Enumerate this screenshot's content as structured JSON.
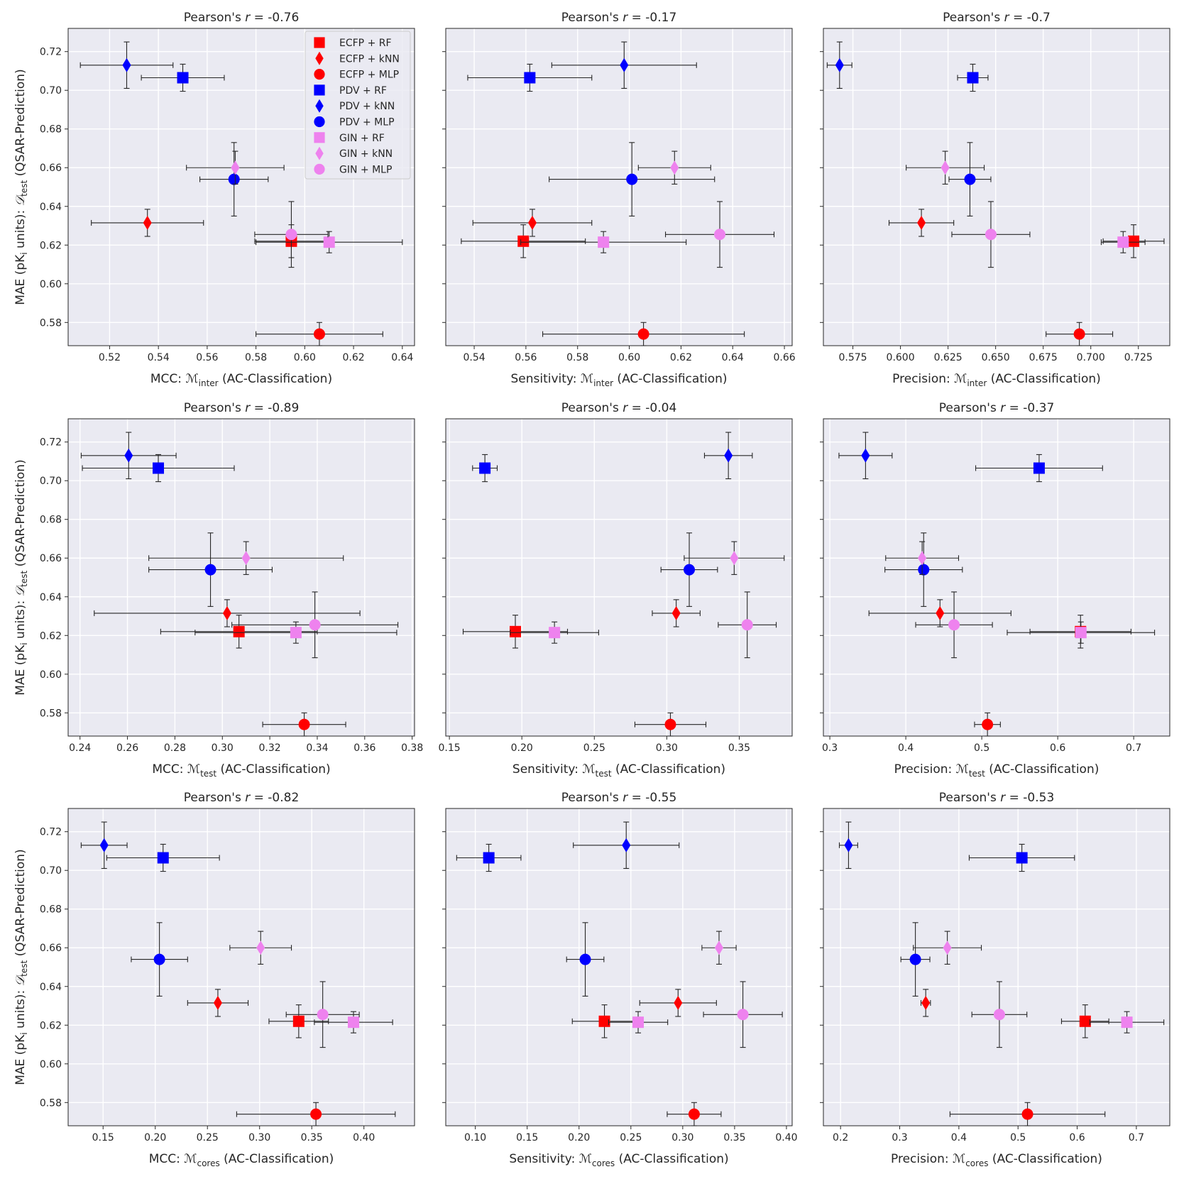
{
  "legend": {
    "placement": "top-right of first panel",
    "entries": [
      {
        "label": "ECFP + RF",
        "color": "#ff0000",
        "marker": "square"
      },
      {
        "label": "ECFP + kNN",
        "color": "#ff0000",
        "marker": "diamond"
      },
      {
        "label": "ECFP + MLP",
        "color": "#ff0000",
        "marker": "circle"
      },
      {
        "label": "PDV + RF",
        "color": "#0000ff",
        "marker": "square"
      },
      {
        "label": "PDV + kNN",
        "color": "#0000ff",
        "marker": "diamond"
      },
      {
        "label": "PDV + MLP",
        "color": "#0000ff",
        "marker": "circle"
      },
      {
        "label": "GIN + RF",
        "color": "#ee82ee",
        "marker": "square"
      },
      {
        "label": "GIN + kNN",
        "color": "#ee82ee",
        "marker": "diamond"
      },
      {
        "label": "GIN + MLP",
        "color": "#ee82ee",
        "marker": "circle"
      }
    ]
  },
  "y_shared": {
    "ylabel_prefix": "MAE (pK",
    "ylabel_sub": "i",
    "ylabel_mid": " units): ",
    "ylabel_math": "𝒟",
    "ylabel_math_sub": "test",
    "ylabel_suffix": " (QSAR-Prediction)",
    "ylim": [
      0.568,
      0.732
    ],
    "yticks": [
      "0.58",
      "0.60",
      "0.62",
      "0.64",
      "0.66",
      "0.68",
      "0.70",
      "0.72"
    ],
    "y_values": [
      0.622,
      0.6315,
      0.574,
      0.7065,
      0.713,
      0.654,
      0.6215,
      0.66,
      0.6255
    ],
    "y_err": [
      0.0085,
      0.007,
      0.006,
      0.007,
      0.012,
      0.019,
      0.0055,
      0.0085,
      0.017
    ]
  },
  "chart_data": [
    {
      "type": "scatter",
      "title_prefix": "Pearson's ",
      "title_r": "r",
      "title_value": " = -0.76",
      "xlabel_prefix": "MCC: ",
      "xlabel_math": "ℳ",
      "xlabel_sub": "inter",
      "xlabel_suffix": " (AC-Classification)",
      "xlim": [
        0.503,
        0.645
      ],
      "xticks": [
        "0.52",
        "0.54",
        "0.56",
        "0.58",
        "0.60",
        "0.62",
        "0.64"
      ],
      "x": [
        0.5945,
        0.5355,
        0.606,
        0.55,
        0.527,
        0.571,
        0.61,
        0.5715,
        0.5945
      ],
      "x_err": [
        0.015,
        0.023,
        0.026,
        0.017,
        0.019,
        0.014,
        0.03,
        0.02,
        0.015
      ]
    },
    {
      "type": "scatter",
      "title_prefix": "Pearson's ",
      "title_r": "r",
      "title_value": " = -0.17",
      "xlabel_prefix": "Sensitivity: ",
      "xlabel_math": "ℳ",
      "xlabel_sub": "inter",
      "xlabel_suffix": " (AC-Classification)",
      "xlim": [
        0.529,
        0.663
      ],
      "xticks": [
        "0.54",
        "0.56",
        "0.58",
        "0.60",
        "0.62",
        "0.64",
        "0.66"
      ],
      "x": [
        0.559,
        0.5625,
        0.6055,
        0.5615,
        0.598,
        0.601,
        0.59,
        0.6175,
        0.635
      ],
      "x_err": [
        0.024,
        0.023,
        0.039,
        0.024,
        0.028,
        0.032,
        0.032,
        0.014,
        0.021
      ]
    },
    {
      "type": "scatter",
      "title_prefix": "Pearson's ",
      "title_r": "r",
      "title_value": " = -0.7",
      "xlabel_prefix": "Precision: ",
      "xlabel_math": "ℳ",
      "xlabel_sub": "inter",
      "xlabel_suffix": " (AC-Classification)",
      "xlim": [
        0.5595,
        0.7415
      ],
      "xticks": [
        "0.575",
        "0.600",
        "0.625",
        "0.650",
        "0.675",
        "0.700",
        "0.725"
      ],
      "x": [
        0.7225,
        0.611,
        0.694,
        0.638,
        0.568,
        0.6365,
        0.717,
        0.6235,
        0.6475
      ],
      "x_err": [
        0.016,
        0.017,
        0.0175,
        0.008,
        0.0065,
        0.011,
        0.0115,
        0.0205,
        0.0205
      ]
    },
    {
      "type": "scatter",
      "title_prefix": "Pearson's ",
      "title_r": "r",
      "title_value": " = -0.89",
      "xlabel_prefix": "MCC: ",
      "xlabel_math": "ℳ",
      "xlabel_sub": "test",
      "xlabel_suffix": " (AC-Classification)",
      "xlim": [
        0.235,
        0.381
      ],
      "xticks": [
        "0.24",
        "0.26",
        "0.28",
        "0.30",
        "0.32",
        "0.34",
        "0.36",
        "0.38"
      ],
      "x": [
        0.307,
        0.302,
        0.3345,
        0.273,
        0.2605,
        0.295,
        0.331,
        0.31,
        0.339
      ],
      "x_err": [
        0.033,
        0.056,
        0.0175,
        0.032,
        0.02,
        0.026,
        0.0425,
        0.041,
        0.035
      ]
    },
    {
      "type": "scatter",
      "title_prefix": "Pearson's ",
      "title_r": "r",
      "title_value": " = -0.04",
      "xlabel_prefix": "Sensitivity: ",
      "xlabel_math": "ℳ",
      "xlabel_sub": "test",
      "xlabel_suffix": " (AC-Classification)",
      "xlim": [
        0.1475,
        0.3865
      ],
      "xticks": [
        "0.15",
        "0.20",
        "0.25",
        "0.30",
        "0.35"
      ],
      "x": [
        0.1955,
        0.3065,
        0.3025,
        0.1745,
        0.3425,
        0.3155,
        0.2225,
        0.3465,
        0.3555
      ],
      "x_err": [
        0.036,
        0.0165,
        0.0245,
        0.0085,
        0.0165,
        0.0195,
        0.0305,
        0.0345,
        0.02
      ]
    },
    {
      "type": "scatter",
      "title_prefix": "Pearson's ",
      "title_r": "r",
      "title_value": " = -0.37",
      "xlabel_prefix": "Precision: ",
      "xlabel_math": "ℳ",
      "xlabel_sub": "test",
      "xlabel_suffix": " (AC-Classification)",
      "xlim": [
        0.2915,
        0.7475
      ],
      "xticks": [
        "0.3",
        "0.4",
        "0.5",
        "0.6",
        "0.7"
      ],
      "x": [
        0.63,
        0.445,
        0.5075,
        0.5755,
        0.347,
        0.4235,
        0.6305,
        0.4215,
        0.4635
      ],
      "x_err": [
        0.0665,
        0.0935,
        0.017,
        0.0835,
        0.035,
        0.051,
        0.097,
        0.048,
        0.0505
      ]
    },
    {
      "type": "scatter",
      "title_prefix": "Pearson's ",
      "title_r": "r",
      "title_value": " = -0.82",
      "xlabel_prefix": "MCC: ",
      "xlabel_math": "ℳ",
      "xlabel_sub": "cores",
      "xlabel_suffix": " (AC-Classification)",
      "xlim": [
        0.1165,
        0.4485
      ],
      "xticks": [
        "0.15",
        "0.20",
        "0.25",
        "0.30",
        "0.35",
        "0.40"
      ],
      "x": [
        0.3375,
        0.26,
        0.354,
        0.2075,
        0.151,
        0.204,
        0.39,
        0.301,
        0.3605
      ],
      "x_err": [
        0.0285,
        0.029,
        0.076,
        0.054,
        0.022,
        0.027,
        0.0375,
        0.0295,
        0.035
      ]
    },
    {
      "type": "scatter",
      "title_prefix": "Pearson's ",
      "title_r": "r",
      "title_value": " = -0.55",
      "xlabel_prefix": "Sensitivity: ",
      "xlabel_math": "ℳ",
      "xlabel_sub": "cores",
      "xlabel_suffix": " (AC-Classification)",
      "xlim": [
        0.0715,
        0.4055
      ],
      "xticks": [
        "0.10",
        "0.15",
        "0.20",
        "0.25",
        "0.30",
        "0.35",
        "0.40"
      ],
      "x": [
        0.2245,
        0.2955,
        0.311,
        0.113,
        0.2455,
        0.206,
        0.257,
        0.335,
        0.358
      ],
      "x_err": [
        0.031,
        0.037,
        0.026,
        0.031,
        0.051,
        0.018,
        0.0285,
        0.0165,
        0.038
      ]
    },
    {
      "type": "scatter",
      "title_prefix": "Pearson's ",
      "title_r": "r",
      "title_value": " = -0.53",
      "xlabel_prefix": "Precision: ",
      "xlabel_math": "ℳ",
      "xlabel_sub": "cores",
      "xlabel_suffix": " (AC-Classification)",
      "xlim": [
        0.171,
        0.7565
      ],
      "xticks": [
        "0.2",
        "0.3",
        "0.4",
        "0.5",
        "0.6",
        "0.7"
      ],
      "x": [
        0.6135,
        0.344,
        0.516,
        0.5065,
        0.2135,
        0.3265,
        0.684,
        0.3805,
        0.4685
      ],
      "x_err": [
        0.04,
        0.008,
        0.131,
        0.089,
        0.0155,
        0.0245,
        0.0625,
        0.0575,
        0.0465
      ]
    }
  ]
}
